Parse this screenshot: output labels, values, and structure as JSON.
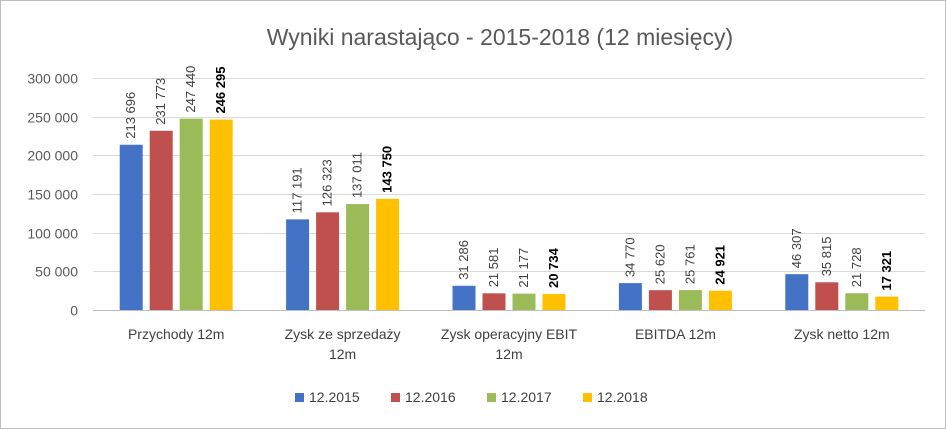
{
  "chart_data": {
    "type": "bar",
    "title": "Wyniki narastająco - 2015-2018 (12 miesięcy)",
    "categories": [
      [
        "Przychody 12m"
      ],
      [
        "Zysk ze sprzedaży",
        "12m"
      ],
      [
        "Zysk operacyjny EBIT",
        "12m"
      ],
      [
        "EBITDA 12m"
      ],
      [
        "Zysk netto 12m"
      ]
    ],
    "series": [
      {
        "name": "12.2015",
        "color": "#4472c4",
        "values": [
          213696,
          117191,
          31286,
          34770,
          46307
        ],
        "labels": [
          "213 696",
          "117 191",
          "31 286",
          "34 770",
          "46 307"
        ],
        "label_bold": false
      },
      {
        "name": "12.2016",
        "color": "#c0504d",
        "values": [
          231773,
          126323,
          21581,
          25620,
          35815
        ],
        "labels": [
          "231 773",
          "126 323",
          "21 581",
          "25 620",
          "35 815"
        ],
        "label_bold": false
      },
      {
        "name": "12.2017",
        "color": "#9bbb59",
        "values": [
          247440,
          137011,
          21177,
          25761,
          21728
        ],
        "labels": [
          "247 440",
          "137 011",
          "21 177",
          "25 761",
          "21 728"
        ],
        "label_bold": false
      },
      {
        "name": "12.2018",
        "color": "#ffc000",
        "values": [
          246295,
          143750,
          20734,
          24921,
          17321
        ],
        "labels": [
          "246 295",
          "143 750",
          "20 734",
          "24 921",
          "17 321"
        ],
        "label_bold": true
      }
    ],
    "ylim": [
      0,
      300000
    ],
    "yticks": [
      0,
      50000,
      100000,
      150000,
      200000,
      250000,
      300000
    ],
    "ytick_labels": [
      "0",
      "50 000",
      "100 000",
      "150 000",
      "200 000",
      "250 000",
      "300 000"
    ],
    "grid": true,
    "legend_position": "bottom"
  }
}
